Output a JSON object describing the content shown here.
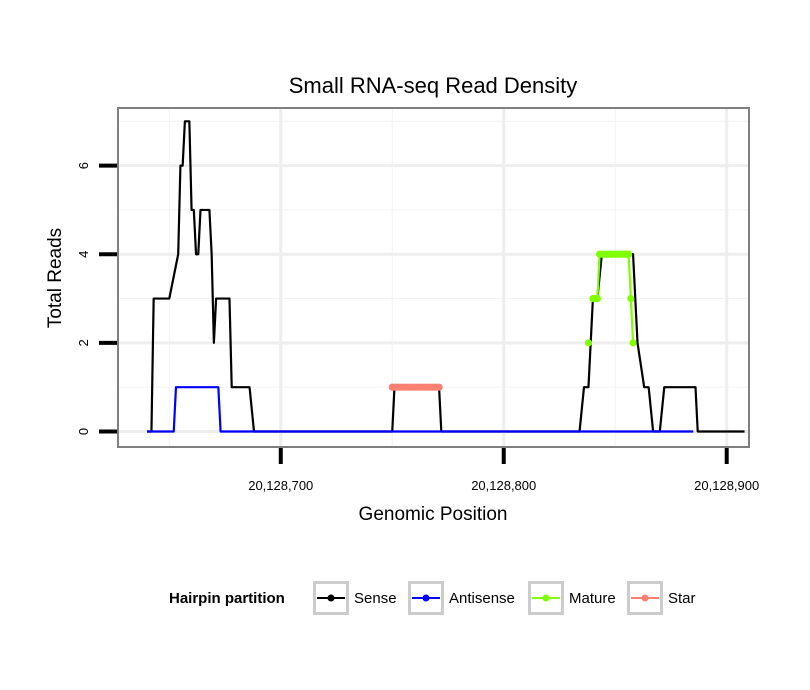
{
  "chart_data": {
    "type": "line",
    "title": "Small RNA-seq Read Density",
    "xlabel": "Genomic Position",
    "ylabel": "Total Reads",
    "xlim": [
      20128627,
      20128910
    ],
    "ylim": [
      -0.35,
      7.3
    ],
    "x_ticks": [
      20128700,
      20128800,
      20128900
    ],
    "x_tick_labels": [
      "20,128,700",
      "20,128,800",
      "20,128,900"
    ],
    "y_ticks": [
      0,
      2,
      4,
      6
    ],
    "y_tick_labels": [
      "0",
      "2",
      "4",
      "6"
    ],
    "grid": true,
    "legend": {
      "title": "Hairpin partition",
      "position": "bottom",
      "items": [
        {
          "label": "Sense",
          "color": "#000000"
        },
        {
          "label": "Antisense",
          "color": "#0000FF"
        },
        {
          "label": "Mature",
          "color": "#7FFF00"
        },
        {
          "label": "Star",
          "color": "#FA8072"
        }
      ]
    },
    "series": [
      {
        "name": "Sense",
        "color": "#000000",
        "x": [
          20128640,
          20128642,
          20128643,
          20128650,
          20128654,
          20128655,
          20128656,
          20128657,
          20128659,
          20128660,
          20128661,
          20128662,
          20128663,
          20128664,
          20128668,
          20128669,
          20128670,
          20128671,
          20128677,
          20128678,
          20128686,
          20128688,
          20128750,
          20128751,
          20128771,
          20128772,
          20128834,
          20128836,
          20128838,
          20128839,
          20128840,
          20128842,
          20128844,
          20128858,
          20128859,
          20128860,
          20128863,
          20128865,
          20128867,
          20128870,
          20128872,
          20128886,
          20128887,
          20128908
        ],
        "y": [
          0,
          0,
          3,
          3,
          4,
          6,
          6,
          7,
          7,
          5,
          5,
          4,
          4,
          5,
          5,
          4,
          2,
          3,
          3,
          1,
          1,
          0,
          0,
          1,
          1,
          0,
          0,
          1,
          1,
          2,
          3,
          3,
          4,
          4,
          3,
          2,
          1,
          1,
          0,
          0,
          1,
          1,
          0,
          0
        ]
      },
      {
        "name": "Antisense",
        "color": "#0000FF",
        "x": [
          20128640,
          20128652,
          20128653,
          20128672,
          20128673,
          20128750,
          20128751,
          20128771,
          20128772,
          20128834,
          20128835,
          20128865,
          20128866,
          20128867,
          20128885
        ],
        "y": [
          0,
          0,
          1,
          1,
          0,
          0,
          0,
          0,
          0,
          0,
          0,
          0,
          0,
          0,
          0
        ]
      },
      {
        "name": "Mature",
        "color": "#7FFF00",
        "x": [
          20128838,
          20128840,
          20128841,
          20128842,
          20128843,
          20128844,
          20128845,
          20128846,
          20128847,
          20128848,
          20128849,
          20128850,
          20128851,
          20128852,
          20128853,
          20128854,
          20128855,
          20128856,
          20128857,
          20128858
        ],
        "y": [
          2,
          3,
          3,
          3,
          4,
          4,
          4,
          4,
          4,
          4,
          4,
          4,
          4,
          4,
          4,
          4,
          4,
          4,
          3,
          2
        ]
      },
      {
        "name": "Star",
        "color": "#FA8072",
        "x": [
          20128750,
          20128751,
          20128752,
          20128753,
          20128754,
          20128755,
          20128756,
          20128757,
          20128758,
          20128759,
          20128760,
          20128761,
          20128762,
          20128763,
          20128764,
          20128765,
          20128766,
          20128767,
          20128768,
          20128769,
          20128770,
          20128771
        ],
        "y": [
          1,
          1,
          1,
          1,
          1,
          1,
          1,
          1,
          1,
          1,
          1,
          1,
          1,
          1,
          1,
          1,
          1,
          1,
          1,
          1,
          1,
          1
        ]
      }
    ]
  }
}
